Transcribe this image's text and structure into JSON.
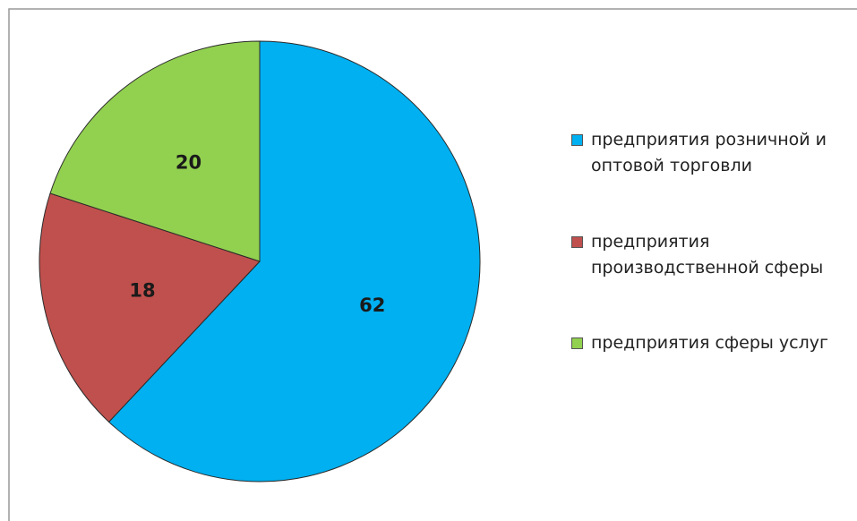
{
  "chart_data": {
    "type": "pie",
    "categories": [
      "предприятия розничной и оптовой торговли",
      "предприятия производственной сферы",
      "предприятия сферы услуг"
    ],
    "values": [
      62,
      18,
      20
    ],
    "colors": [
      "#00b0f0",
      "#c0504d",
      "#92d050"
    ],
    "legend": "right"
  }
}
